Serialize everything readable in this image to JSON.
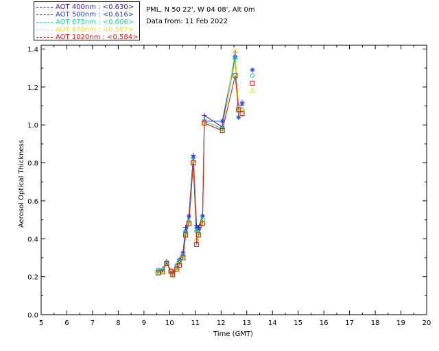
{
  "header": {
    "site": "PML, N 50 22', W 04 08', Alt 0m",
    "date": "Data from: 11 Feb 2022"
  },
  "legend": [
    {
      "label": "AOT  400nm : <0.630>",
      "color": "#3a1f9c"
    },
    {
      "label": "AOT  500nm : <0.616>",
      "color": "#1c46e0"
    },
    {
      "label": "AOT  675nm : <0.606>",
      "color": "#19d8a0"
    },
    {
      "label": "AOT  870nm : <0.587>",
      "color": "#e8e800"
    },
    {
      "label": "AOT 1020nm : <0.584>",
      "color": "#dd1111"
    }
  ],
  "chart_data": {
    "type": "line",
    "title": "",
    "xlabel": "Time (GMT)",
    "ylabel": "Aerosol Optical Thickness",
    "xlim": [
      5,
      20
    ],
    "ylim": [
      0.0,
      1.42
    ],
    "xticks": [
      5,
      6,
      7,
      8,
      9,
      10,
      11,
      12,
      13,
      14,
      15,
      16,
      17,
      18,
      19,
      20
    ],
    "yticks": [
      0.0,
      0.2,
      0.4,
      0.6,
      0.8,
      1.0,
      1.2,
      1.4
    ],
    "x": [
      9.55,
      9.72,
      9.88,
      10.05,
      10.12,
      10.28,
      10.38,
      10.52,
      10.62,
      10.75,
      10.92,
      11.05,
      11.12,
      11.28,
      11.35,
      12.05,
      12.55,
      12.68,
      12.82,
      13.22
    ],
    "series": [
      {
        "name": "AOT 400nm",
        "marker": "plus",
        "color": "#3a1f9c",
        "values": [
          0.23,
          0.24,
          0.28,
          0.23,
          0.22,
          0.26,
          0.28,
          0.33,
          0.46,
          0.52,
          0.84,
          0.47,
          0.46,
          0.52,
          1.05,
          0.99,
          1.38,
          1.1,
          1.12,
          1.29
        ]
      },
      {
        "name": "AOT 500nm",
        "marker": "asterisk",
        "color": "#1c46e0",
        "values": [
          0.235,
          0.235,
          0.275,
          0.225,
          0.22,
          0.26,
          0.29,
          0.32,
          0.44,
          0.52,
          0.83,
          0.46,
          0.45,
          0.52,
          1.02,
          1.02,
          1.36,
          1.04,
          1.11,
          1.29
        ]
      },
      {
        "name": "AOT 675nm",
        "marker": "diamond",
        "color": "#19d8a0",
        "values": [
          0.23,
          0.235,
          0.275,
          0.23,
          0.215,
          0.25,
          0.28,
          0.31,
          0.43,
          0.49,
          0.81,
          0.44,
          0.43,
          0.5,
          1.02,
          0.98,
          1.35,
          1.08,
          1.08,
          1.26
        ]
      },
      {
        "name": "AOT 870nm",
        "marker": "triangle",
        "color": "#e8e800",
        "values": [
          0.225,
          0.23,
          0.27,
          0.225,
          0.21,
          0.245,
          0.27,
          0.3,
          0.42,
          0.48,
          0.8,
          0.4,
          0.42,
          0.49,
          1.01,
          0.97,
          1.39,
          1.09,
          1.07,
          1.18
        ]
      },
      {
        "name": "AOT 1020nm",
        "marker": "square",
        "color": "#dd1111",
        "values": [
          0.22,
          0.225,
          0.27,
          0.23,
          0.21,
          0.24,
          0.26,
          0.3,
          0.42,
          0.48,
          0.8,
          0.37,
          0.42,
          0.48,
          1.01,
          0.97,
          1.26,
          1.08,
          1.06,
          1.22
        ]
      }
    ],
    "line_points": 18
  }
}
